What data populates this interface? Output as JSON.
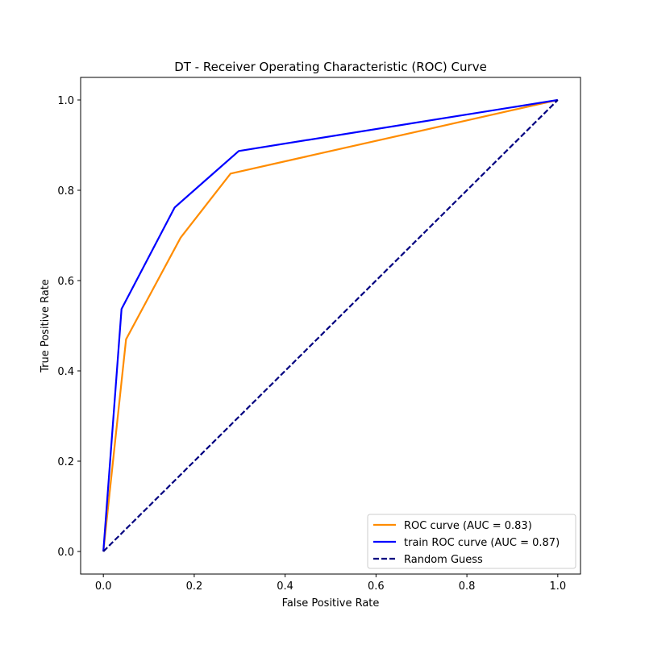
{
  "chart_data": {
    "type": "line",
    "title": "DT - Receiver Operating Characteristic (ROC) Curve",
    "xlabel": "False Positive Rate",
    "ylabel": "True Positive Rate",
    "xlim": [
      -0.05,
      1.05
    ],
    "ylim": [
      -0.05,
      1.05
    ],
    "xticks": [
      0.0,
      0.2,
      0.4,
      0.6,
      0.8,
      1.0
    ],
    "yticks": [
      0.0,
      0.2,
      0.4,
      0.6,
      0.8,
      1.0
    ],
    "xtick_labels": [
      "0.0",
      "0.2",
      "0.4",
      "0.6",
      "0.8",
      "1.0"
    ],
    "ytick_labels": [
      "0.0",
      "0.2",
      "0.4",
      "0.6",
      "0.8",
      "1.0"
    ],
    "grid": false,
    "legend_position": "bottom-right",
    "series": [
      {
        "name": "ROC curve (AUC = 0.83)",
        "color": "#ff8c00",
        "style": "solid",
        "x": [
          0.0,
          0.05,
          0.17,
          0.28,
          1.0
        ],
        "y": [
          0.0,
          0.47,
          0.695,
          0.837,
          1.0
        ]
      },
      {
        "name": "train ROC curve (AUC = 0.87)",
        "color": "#0000ff",
        "style": "solid",
        "x": [
          0.0,
          0.04,
          0.157,
          0.298,
          1.0
        ],
        "y": [
          0.0,
          0.537,
          0.762,
          0.887,
          1.0
        ]
      },
      {
        "name": "Random Guess",
        "color": "#000080",
        "style": "dashed",
        "x": [
          0.0,
          1.0
        ],
        "y": [
          0.0,
          1.0
        ]
      }
    ]
  }
}
